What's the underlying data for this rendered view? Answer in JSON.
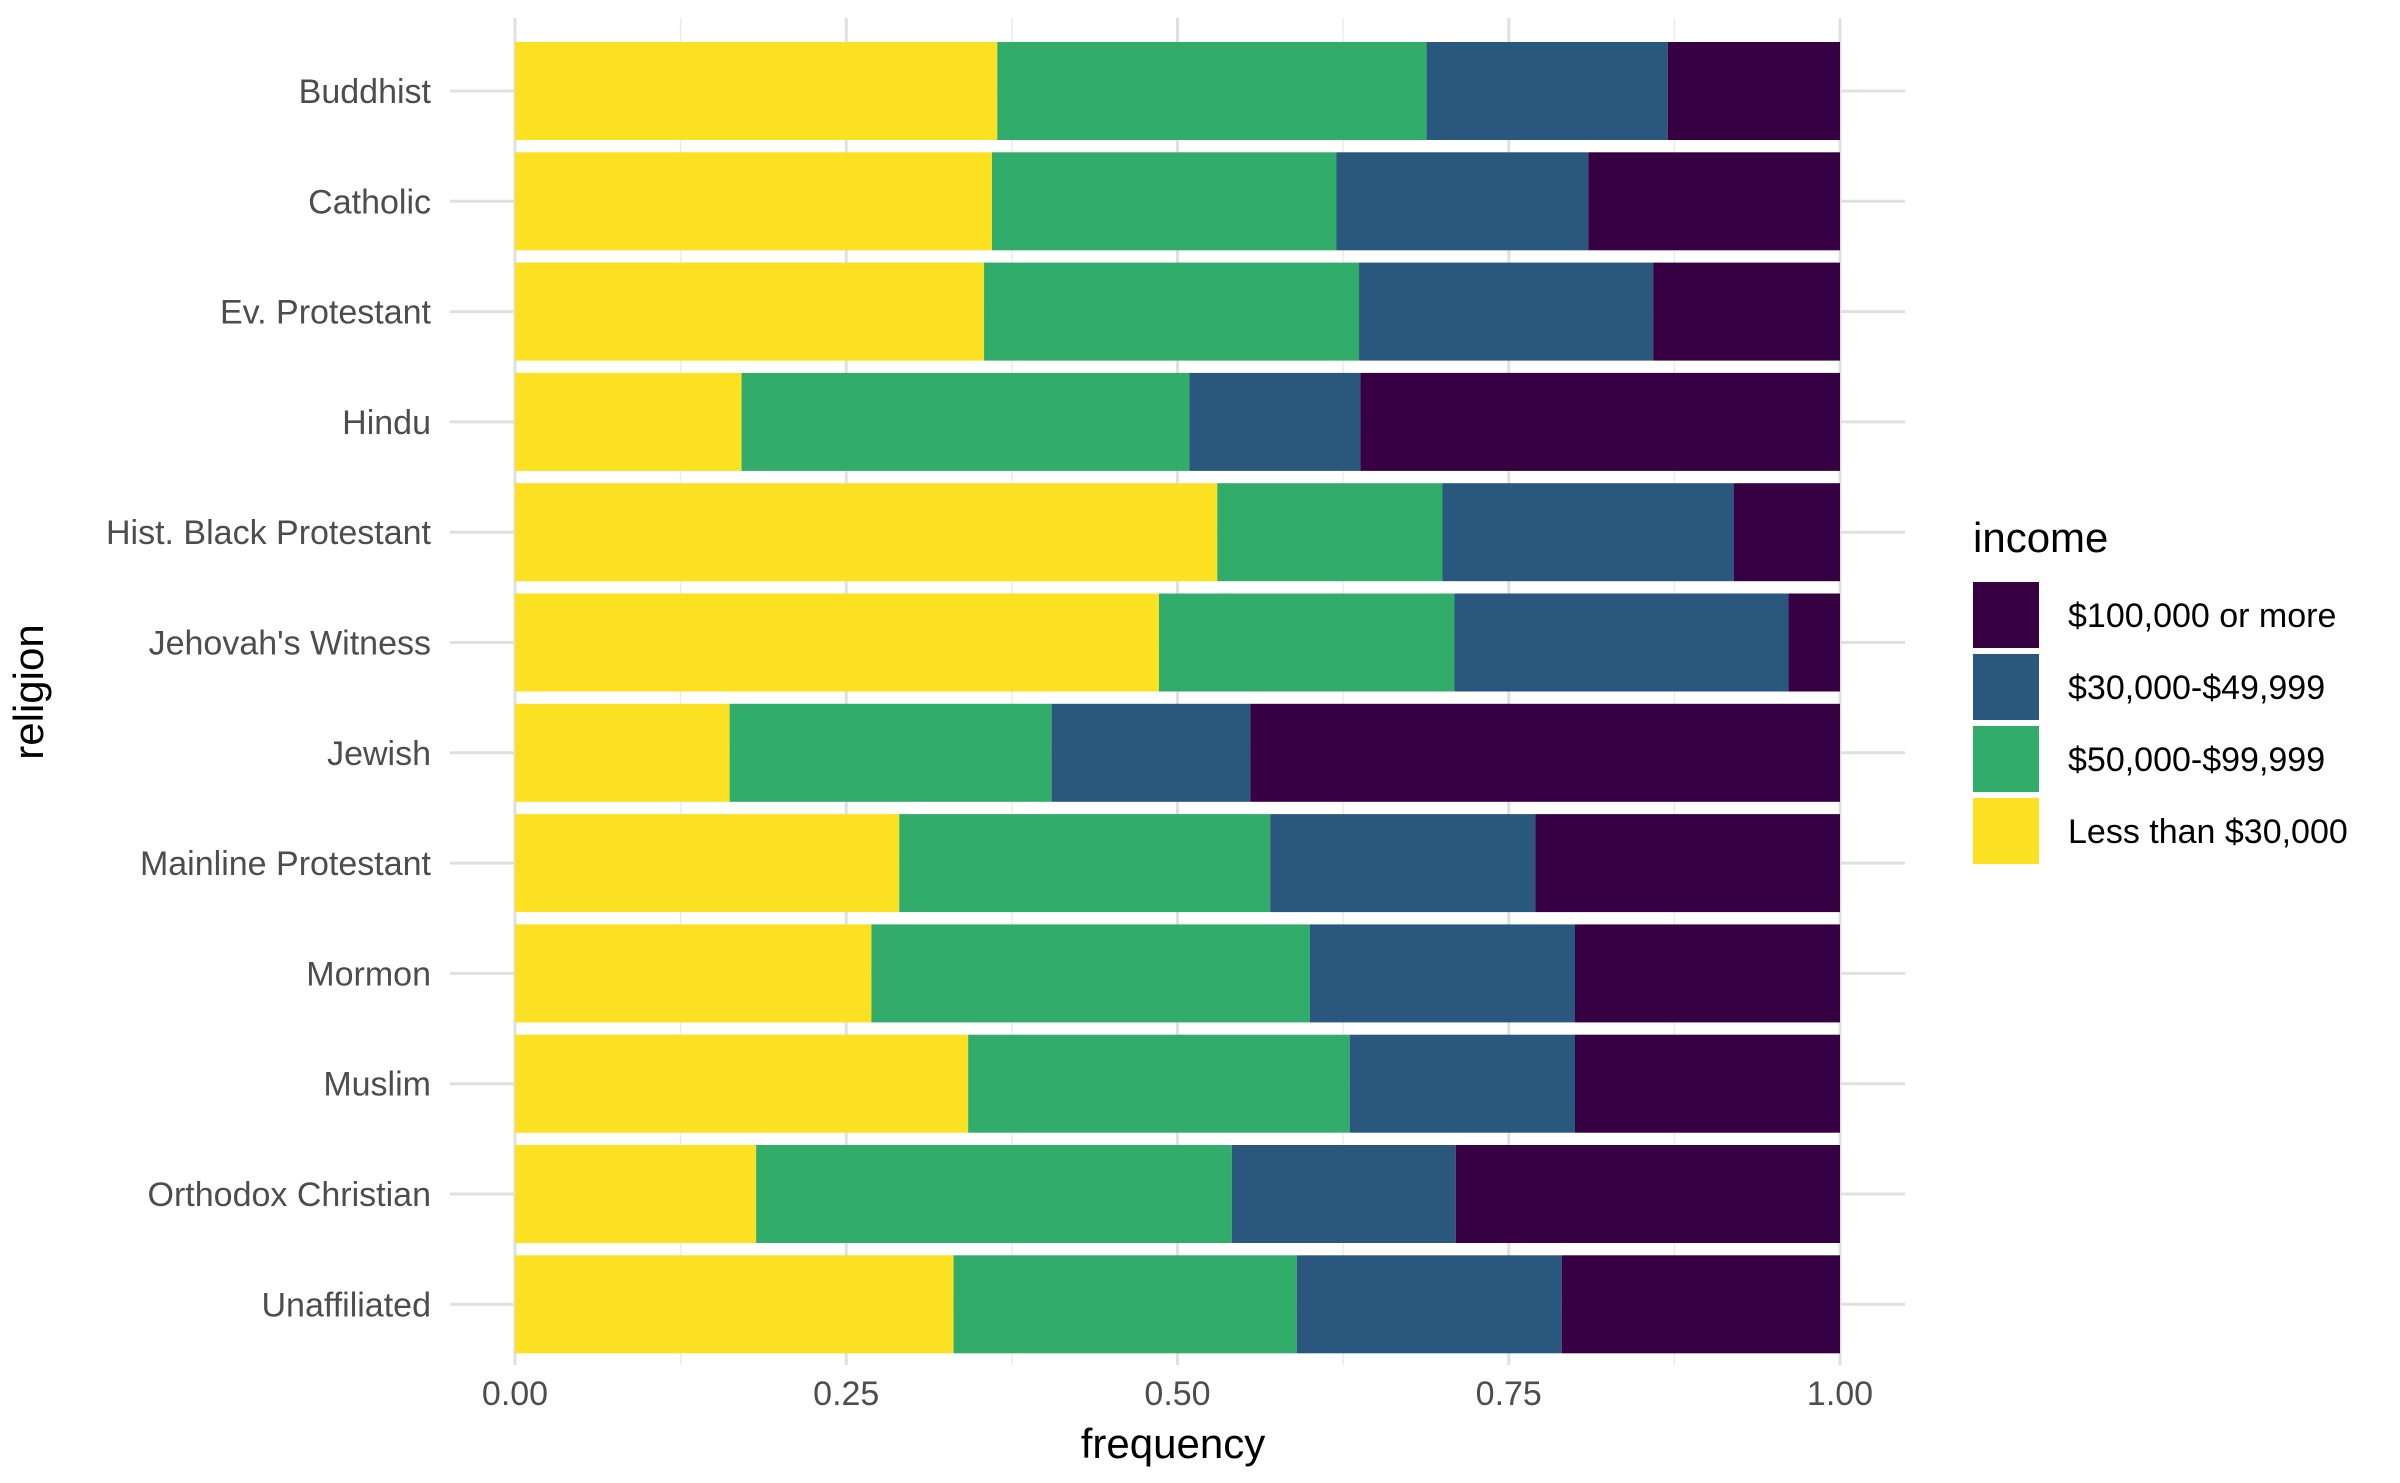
{
  "chart_data": {
    "type": "bar",
    "orientation": "horizontal",
    "stacked": true,
    "xlabel": "frequency",
    "ylabel": "religion",
    "xlim": [
      0,
      1
    ],
    "x_ticks": [
      "0.00",
      "0.25",
      "0.50",
      "0.75",
      "1.00"
    ],
    "x_tick_values": [
      0,
      0.25,
      0.5,
      0.75,
      1.0
    ],
    "grid": true,
    "legend": {
      "title": "income",
      "placement": "right",
      "entries": [
        {
          "label": "$100,000 or more",
          "color": "#360042"
        },
        {
          "label": "$30,000-$49,999",
          "color": "#29577d"
        },
        {
          "label": "$50,000-$99,999",
          "color": "#31ac6b"
        },
        {
          "label": "Less than $30,000",
          "color": "#fbe122"
        }
      ]
    },
    "categories": [
      "Buddhist",
      "Catholic",
      "Ev. Protestant",
      "Hindu",
      "Hist. Black Protestant",
      "Jehovah's Witness",
      "Jewish",
      "Mainline Protestant",
      "Mormon",
      "Muslim",
      "Orthodox Christian",
      "Unaffiliated"
    ],
    "stack_order_left_to_right": [
      "Less than $30,000",
      "$50,000-$99,999",
      "$30,000-$49,999",
      "$100,000 or more"
    ],
    "series": [
      {
        "name": "Less than $30,000",
        "color": "#fbe122",
        "values": [
          0.364,
          0.36,
          0.354,
          0.171,
          0.53,
          0.486,
          0.162,
          0.29,
          0.269,
          0.342,
          0.182,
          0.331
        ]
      },
      {
        "name": "$50,000-$99,999",
        "color": "#31ac6b",
        "values": [
          0.324,
          0.26,
          0.283,
          0.338,
          0.17,
          0.223,
          0.243,
          0.28,
          0.331,
          0.288,
          0.359,
          0.259
        ]
      },
      {
        "name": "$30,000-$49,999",
        "color": "#29577d",
        "values": [
          0.182,
          0.19,
          0.222,
          0.129,
          0.22,
          0.252,
          0.15,
          0.2,
          0.2,
          0.17,
          0.169,
          0.2
        ]
      },
      {
        "name": "$100,000 or more",
        "color": "#360042",
        "values": [
          0.13,
          0.19,
          0.141,
          0.362,
          0.08,
          0.039,
          0.445,
          0.23,
          0.2,
          0.2,
          0.29,
          0.21
        ]
      }
    ]
  }
}
